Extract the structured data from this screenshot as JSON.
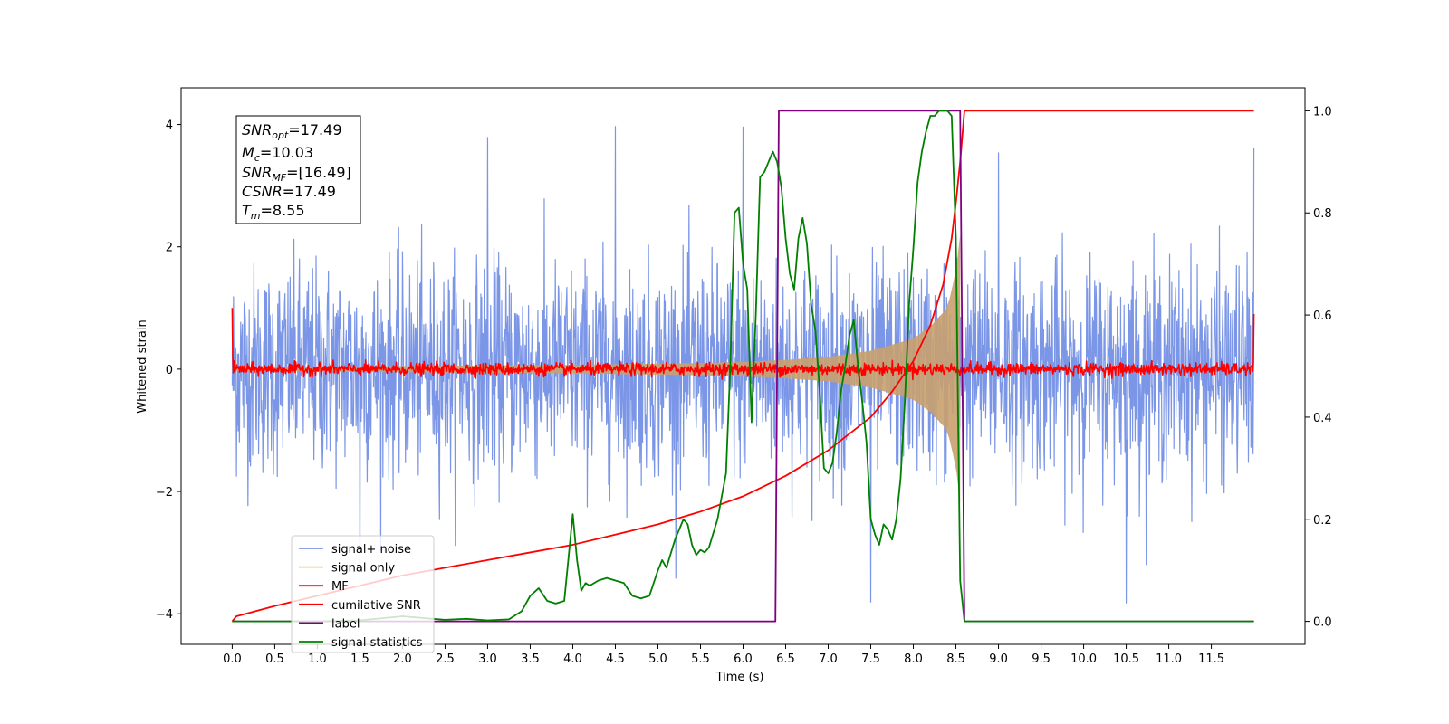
{
  "chart_data": {
    "type": "line",
    "xlabel": "Time (s)",
    "ylabel": "Whitened strain",
    "xlim": [
      -0.6,
      12.6
    ],
    "ylim": [
      -4.5,
      4.6
    ],
    "y2lim": [
      -0.045,
      1.045
    ],
    "grid": false,
    "legend_placement": "lower-left",
    "x_ticks": [
      0.0,
      0.5,
      1.0,
      1.5,
      2.0,
      2.5,
      3.0,
      3.5,
      4.0,
      4.5,
      5.0,
      5.5,
      6.0,
      6.5,
      7.0,
      7.5,
      8.0,
      8.5,
      9.0,
      9.5,
      10.0,
      10.5,
      11.0,
      11.5
    ],
    "x_tick_labels": [
      "0.0",
      "0.5",
      "1.0",
      "1.5",
      "2.0",
      "2.5",
      "3.0",
      "3.5",
      "4.0",
      "4.5",
      "5.0",
      "5.5",
      "6.0",
      "6.5",
      "7.0",
      "7.5",
      "8.0",
      "8.5",
      "9.0",
      "9.5",
      "10.0",
      "10.5",
      "11.0",
      "11.5"
    ],
    "y_ticks": [
      -4,
      -2,
      0,
      2,
      4
    ],
    "y_tick_labels": [
      "−4",
      "−2",
      "0",
      "2",
      "4"
    ],
    "y2_ticks": [
      0.0,
      0.2,
      0.4,
      0.6,
      0.8,
      1.0
    ],
    "y2_tick_labels": [
      "0.0",
      "0.2",
      "0.4",
      "0.6",
      "0.8",
      "1.0"
    ],
    "annotation": {
      "snr_opt": {
        "base": "SNR",
        "sub": "opt",
        "value": "=17.49"
      },
      "mc": {
        "base": "M",
        "sub": "c",
        "value": "=10.03"
      },
      "snr_mf": {
        "base": "SNR",
        "sub": "MF",
        "value": "=[16.49]"
      },
      "csnr": {
        "base": "CSNR",
        "sub": "",
        "value": "=17.49"
      },
      "tm": {
        "base": "T",
        "sub": "m",
        "value": "=8.55"
      }
    },
    "series": [
      {
        "name": "signal+ noise",
        "color": "#7b96e6",
        "axis": "left",
        "style": "noise",
        "x_range": [
          0.0,
          12.0
        ],
        "std": 0.85,
        "min": -4.05,
        "max": 4.15
      },
      {
        "name": "signal only",
        "color": "#f5c77e",
        "fill_color": "#c8a06e",
        "axis": "left",
        "style": "chirp-envelope",
        "x": [
          0.0,
          1.0,
          2.0,
          3.0,
          4.0,
          5.0,
          5.5,
          6.0,
          6.5,
          7.0,
          7.5,
          8.0,
          8.2,
          8.4,
          8.5,
          8.55
        ],
        "amplitude": [
          0.03,
          0.04,
          0.05,
          0.06,
          0.07,
          0.09,
          0.1,
          0.12,
          0.15,
          0.2,
          0.3,
          0.5,
          0.7,
          1.0,
          1.6,
          2.2
        ]
      },
      {
        "name": "MF",
        "color": "#ff0000",
        "axis": "left",
        "style": "noise",
        "x_range": [
          0.0,
          12.0
        ],
        "std": 0.05,
        "edge_start": 1.0,
        "edge_end": 0.9
      },
      {
        "name": "cumilative SNR",
        "color": "#ff0000",
        "axis": "right",
        "x": [
          0.0,
          0.05,
          0.5,
          1.0,
          1.5,
          2.0,
          2.5,
          3.0,
          3.5,
          4.0,
          4.5,
          5.0,
          5.5,
          6.0,
          6.5,
          7.0,
          7.5,
          7.75,
          8.0,
          8.2,
          8.35,
          8.45,
          8.5,
          8.55,
          8.6,
          12.0
        ],
        "y": [
          0.0,
          0.01,
          0.03,
          0.05,
          0.07,
          0.09,
          0.105,
          0.12,
          0.135,
          0.15,
          0.17,
          0.19,
          0.215,
          0.245,
          0.285,
          0.335,
          0.4,
          0.45,
          0.51,
          0.58,
          0.66,
          0.75,
          0.82,
          0.9,
          1.0,
          1.0
        ]
      },
      {
        "name": "label",
        "color": "#800080",
        "axis": "right",
        "x": [
          0.0,
          6.38,
          6.42,
          8.55,
          8.6,
          12.0
        ],
        "y": [
          0.0,
          0.0,
          1.0,
          1.0,
          0.0,
          0.0
        ]
      },
      {
        "name": "signal statistics",
        "color": "#008000",
        "axis": "right",
        "x": [
          0.0,
          0.5,
          1.0,
          1.5,
          2.0,
          2.5,
          2.75,
          3.0,
          3.25,
          3.4,
          3.5,
          3.6,
          3.7,
          3.8,
          3.9,
          4.0,
          4.05,
          4.1,
          4.15,
          4.2,
          4.3,
          4.4,
          4.5,
          4.6,
          4.7,
          4.8,
          4.9,
          5.0,
          5.05,
          5.1,
          5.2,
          5.3,
          5.35,
          5.4,
          5.45,
          5.5,
          5.55,
          5.6,
          5.7,
          5.8,
          5.85,
          5.9,
          5.95,
          6.0,
          6.05,
          6.1,
          6.15,
          6.2,
          6.25,
          6.3,
          6.35,
          6.4,
          6.45,
          6.5,
          6.55,
          6.6,
          6.65,
          6.7,
          6.75,
          6.8,
          6.85,
          6.9,
          6.95,
          7.0,
          7.05,
          7.1,
          7.15,
          7.2,
          7.25,
          7.3,
          7.35,
          7.4,
          7.45,
          7.5,
          7.55,
          7.6,
          7.65,
          7.7,
          7.75,
          7.8,
          7.85,
          7.9,
          7.95,
          8.0,
          8.05,
          8.1,
          8.15,
          8.2,
          8.25,
          8.3,
          8.35,
          8.4,
          8.45,
          8.5,
          8.55,
          8.6,
          8.7,
          9.0,
          12.0
        ],
        "y": [
          0.0,
          0.0,
          0.0,
          0.002,
          0.01,
          0.003,
          0.005,
          0.002,
          0.004,
          0.02,
          0.05,
          0.065,
          0.04,
          0.035,
          0.04,
          0.21,
          0.12,
          0.06,
          0.075,
          0.07,
          0.08,
          0.085,
          0.08,
          0.075,
          0.05,
          0.045,
          0.05,
          0.1,
          0.12,
          0.105,
          0.16,
          0.2,
          0.19,
          0.15,
          0.13,
          0.14,
          0.135,
          0.145,
          0.2,
          0.29,
          0.5,
          0.8,
          0.81,
          0.7,
          0.65,
          0.39,
          0.6,
          0.87,
          0.88,
          0.9,
          0.92,
          0.9,
          0.85,
          0.75,
          0.68,
          0.65,
          0.75,
          0.79,
          0.74,
          0.62,
          0.57,
          0.45,
          0.3,
          0.29,
          0.31,
          0.37,
          0.45,
          0.5,
          0.56,
          0.59,
          0.5,
          0.43,
          0.35,
          0.2,
          0.17,
          0.15,
          0.19,
          0.18,
          0.16,
          0.2,
          0.28,
          0.43,
          0.62,
          0.73,
          0.86,
          0.92,
          0.96,
          0.99,
          0.99,
          1.0,
          1.0,
          1.0,
          0.99,
          0.75,
          0.08,
          0.0,
          0.0,
          0.0,
          0.0
        ]
      }
    ]
  }
}
